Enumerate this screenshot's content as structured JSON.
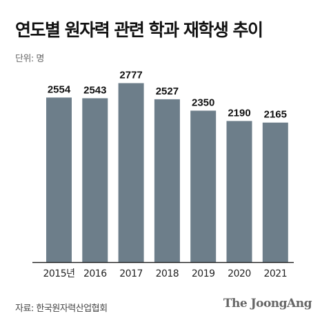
{
  "header": {
    "title": "연도별 원자력 관련 학과 재학생 추이",
    "unit": "단위: 명"
  },
  "footer": {
    "source": "자료: 한국원자력산업협회",
    "brand": "The JoongAng"
  },
  "colors": {
    "bar": "#6d7e8a",
    "axis": "#222222"
  },
  "chart_data": {
    "type": "bar",
    "title": "연도별 원자력 관련 학과 재학생 추이",
    "unit": "단위: 명",
    "xlabel": "",
    "ylabel": "",
    "categories": [
      "2015년",
      "2016",
      "2017",
      "2018",
      "2019",
      "2020",
      "2021"
    ],
    "values": [
      2554,
      2543,
      2777,
      2527,
      2350,
      2190,
      2165
    ],
    "ylim": [
      0,
      2911
    ],
    "grid": false,
    "legend": "none"
  }
}
